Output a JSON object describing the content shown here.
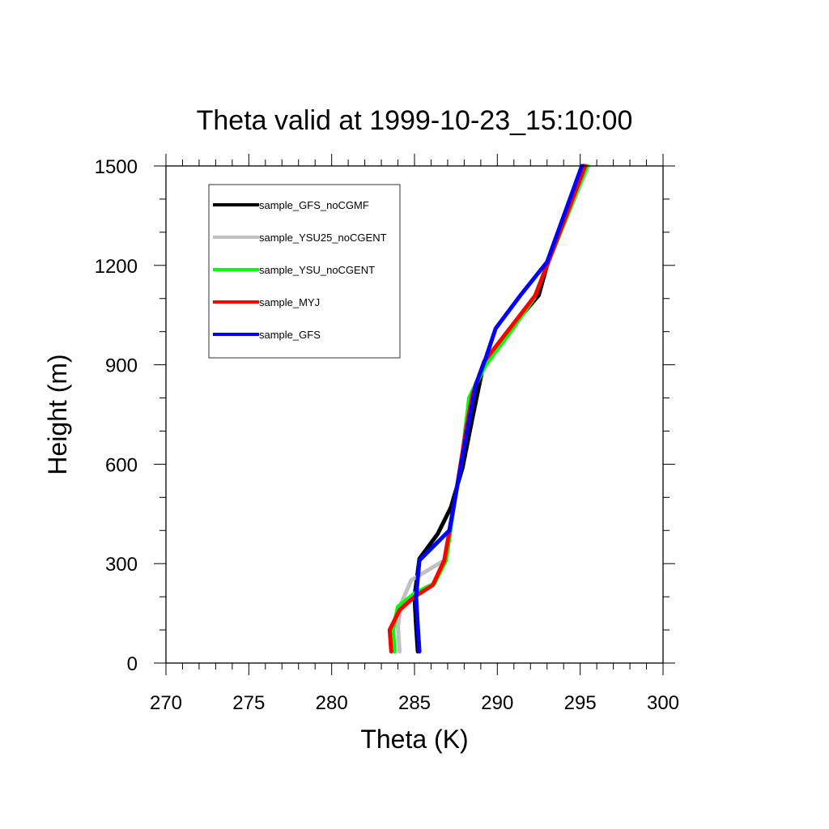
{
  "chart_data": {
    "type": "line",
    "title": "Theta valid at 1999-10-23_15:10:00",
    "xlabel": "Theta (K)",
    "ylabel": "Height (m)",
    "xlim": [
      270,
      300
    ],
    "ylim": [
      0,
      1500
    ],
    "xticks": [
      270,
      275,
      280,
      285,
      290,
      295,
      300
    ],
    "yticks": [
      0,
      300,
      600,
      900,
      1200,
      1500
    ],
    "xtick_labels": [
      "270",
      "275",
      "280",
      "285",
      "290",
      "295",
      "300"
    ],
    "ytick_labels": [
      "0",
      "300",
      "600",
      "900",
      "1200",
      "1500"
    ],
    "grid": false,
    "legend_position": "top-left",
    "series": [
      {
        "name": "sample_GFS_noCGMF",
        "color": "#000000",
        "points": [
          [
            285.2,
            35
          ],
          [
            285.1,
            110
          ],
          [
            285.0,
            200
          ],
          [
            285.3,
            315
          ],
          [
            286.4,
            390
          ],
          [
            287.2,
            470
          ],
          [
            287.9,
            590
          ],
          [
            288.5,
            740
          ],
          [
            289.2,
            910
          ],
          [
            290.8,
            1010
          ],
          [
            292.5,
            1110
          ],
          [
            293.0,
            1200
          ],
          [
            295.2,
            1500
          ]
        ]
      },
      {
        "name": "sample_YSU25_noCGENT",
        "color": "#c0c0c0",
        "points": [
          [
            284.1,
            35
          ],
          [
            284.0,
            110
          ],
          [
            284.2,
            180
          ],
          [
            284.8,
            250
          ],
          [
            286.8,
            310
          ],
          [
            287.4,
            480
          ],
          [
            287.9,
            630
          ],
          [
            288.1,
            720
          ],
          [
            288.4,
            810
          ],
          [
            289.4,
            920
          ],
          [
            290.6,
            1000
          ],
          [
            292.2,
            1100
          ],
          [
            293.0,
            1200
          ],
          [
            295.5,
            1500
          ]
        ]
      },
      {
        "name": "sample_YSU_noCGENT",
        "color": "#00ff00",
        "points": [
          [
            283.8,
            35
          ],
          [
            283.7,
            100
          ],
          [
            284.0,
            170
          ],
          [
            285.0,
            210
          ],
          [
            286.2,
            240
          ],
          [
            286.9,
            310
          ],
          [
            287.4,
            480
          ],
          [
            287.9,
            630
          ],
          [
            288.3,
            800
          ],
          [
            289.3,
            900
          ],
          [
            290.8,
            1000
          ],
          [
            292.2,
            1100
          ],
          [
            293.0,
            1200
          ],
          [
            295.4,
            1500
          ]
        ]
      },
      {
        "name": "sample_MYJ",
        "color": "#ff0000",
        "points": [
          [
            283.6,
            35
          ],
          [
            283.5,
            100
          ],
          [
            284.1,
            160
          ],
          [
            285.0,
            200
          ],
          [
            286.1,
            235
          ],
          [
            286.8,
            310
          ],
          [
            287.4,
            480
          ],
          [
            288.1,
            700
          ],
          [
            288.5,
            810
          ],
          [
            289.2,
            910
          ],
          [
            290.6,
            1000
          ],
          [
            292.3,
            1110
          ],
          [
            293.0,
            1200
          ],
          [
            295.3,
            1500
          ]
        ]
      },
      {
        "name": "sample_GFS",
        "color": "#0000ff",
        "points": [
          [
            285.3,
            35
          ],
          [
            285.2,
            110
          ],
          [
            285.1,
            200
          ],
          [
            285.3,
            310
          ],
          [
            287.1,
            400
          ],
          [
            287.6,
            540
          ],
          [
            288.1,
            680
          ],
          [
            288.7,
            840
          ],
          [
            289.3,
            920
          ],
          [
            289.9,
            1010
          ],
          [
            291.4,
            1110
          ],
          [
            293.0,
            1210
          ],
          [
            295.1,
            1500
          ]
        ]
      }
    ]
  }
}
